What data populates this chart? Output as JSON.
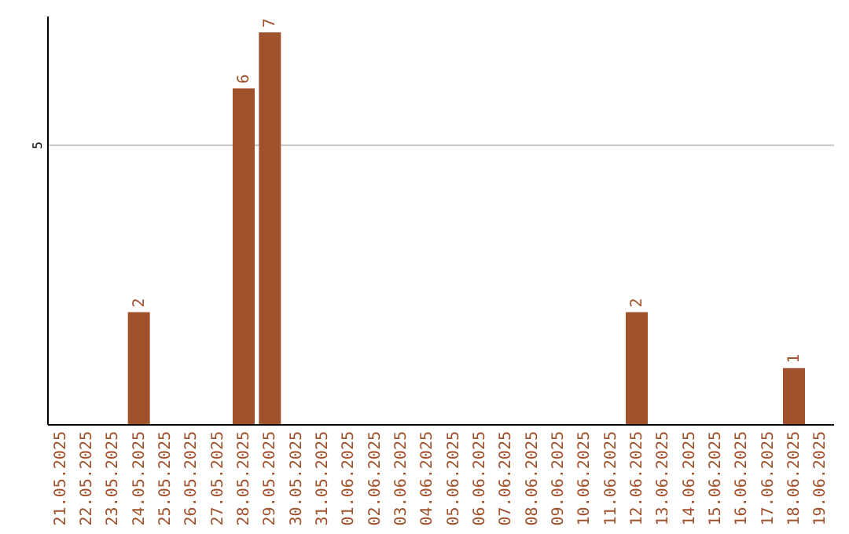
{
  "chart_data": {
    "type": "bar",
    "categories": [
      "21.05.2025",
      "22.05.2025",
      "23.05.2025",
      "24.05.2025",
      "25.05.2025",
      "26.05.2025",
      "27.05.2025",
      "28.05.2025",
      "29.05.2025",
      "30.05.2025",
      "31.05.2025",
      "01.06.2025",
      "02.06.2025",
      "03.06.2025",
      "04.06.2025",
      "05.06.2025",
      "06.06.2025",
      "07.06.2025",
      "08.06.2025",
      "09.06.2025",
      "10.06.2025",
      "11.06.2025",
      "12.06.2025",
      "13.06.2025",
      "14.06.2025",
      "15.06.2025",
      "16.06.2025",
      "17.06.2025",
      "18.06.2025",
      "19.06.2025"
    ],
    "values": [
      null,
      null,
      null,
      2,
      null,
      null,
      null,
      6,
      7,
      null,
      null,
      null,
      null,
      null,
      null,
      null,
      null,
      null,
      null,
      null,
      null,
      null,
      2,
      null,
      null,
      null,
      null,
      null,
      1,
      null
    ],
    "color": "#a0522d",
    "ylim": [
      0,
      7.3
    ],
    "yticks": [
      5
    ],
    "grid": "y",
    "data_labels": true
  }
}
